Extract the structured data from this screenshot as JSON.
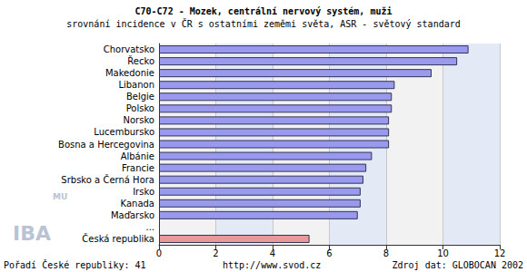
{
  "chart_data": {
    "type": "bar",
    "title": "C70-C72 - Mozek, centrální nervový systém, muži",
    "subtitle": "srovnání incidence v ČR s ostatními zeměmi světa, ASR - světový standard",
    "orientation": "horizontal",
    "categories": [
      "Chorvatsko",
      "Řecko",
      "Makedonie",
      "Libanon",
      "Belgie",
      "Polsko",
      "Norsko",
      "Lucembursko",
      "Bosna a Hercegovina",
      "Albánie",
      "Francie",
      "Srbsko a Černá Hora",
      "Irsko",
      "Kanada",
      "Maďarsko",
      "...",
      "Česká republika"
    ],
    "values": [
      10.9,
      10.5,
      9.6,
      8.3,
      8.2,
      8.2,
      8.1,
      8.1,
      8.1,
      7.5,
      7.3,
      7.2,
      7.1,
      7.1,
      7.0,
      null,
      5.3
    ],
    "colors": [
      "#9999ee",
      "#9999ee",
      "#9999ee",
      "#9999ee",
      "#9999ee",
      "#9999ee",
      "#9999ee",
      "#9999ee",
      "#9999ee",
      "#9999ee",
      "#9999ee",
      "#9999ee",
      "#9999ee",
      "#9999ee",
      "#9999ee",
      "#9999ee",
      "#e89a9a"
    ],
    "xlim": [
      0,
      12
    ],
    "xticks": [
      0,
      2,
      4,
      6,
      8,
      10,
      12
    ],
    "grid": true,
    "annotations": [
      "Pořadí České republiky: 41",
      "http://www.svod.cz",
      "Zdroj dat: GLOBOCAN 2002",
      "MU",
      "IBA"
    ]
  }
}
